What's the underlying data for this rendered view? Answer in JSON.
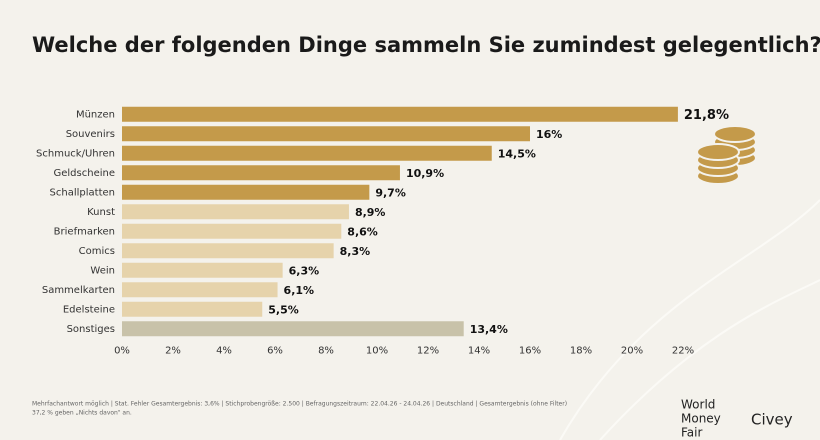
{
  "chart_data": {
    "type": "hbar",
    "title": "Welche der folgenden Dinge sammeln Sie zumindest gelegentlich?",
    "categories": [
      "Münzen",
      "Souvenirs",
      "Schmuck/Uhren",
      "Geldscheine",
      "Schallplatten",
      "Kunst",
      "Briefmarken",
      "Comics",
      "Wein",
      "Sammelkarten",
      "Edelsteine",
      "Sonstiges"
    ],
    "values": [
      21.8,
      16,
      14.5,
      10.9,
      9.7,
      8.9,
      8.6,
      8.3,
      6.3,
      6.1,
      5.5,
      13.4
    ],
    "value_labels": [
      "21,8%",
      "16%",
      "14,5%",
      "10,9%",
      "9,7%",
      "8,9%",
      "8,6%",
      "8,3%",
      "6,3%",
      "6,1%",
      "5,5%",
      "13,4%"
    ],
    "colors": [
      "#c49a4a",
      "#c49a4a",
      "#c49a4a",
      "#c49a4a",
      "#c49a4a",
      "#e6d3ab",
      "#e6d3ab",
      "#e6d3ab",
      "#e6d3ab",
      "#e6d3ab",
      "#e6d3ab",
      "#c8c2a9"
    ],
    "xlim": [
      0,
      22
    ],
    "xticks": [
      {
        "value": 0,
        "label": "0%"
      },
      {
        "value": 2,
        "label": "2%"
      },
      {
        "value": 4,
        "label": "4%"
      },
      {
        "value": 6,
        "label": "6%"
      },
      {
        "value": 8,
        "label": "8%"
      },
      {
        "value": 10,
        "label": "10%"
      },
      {
        "value": 12,
        "label": "12%"
      },
      {
        "value": 14,
        "label": "14%"
      },
      {
        "value": 16,
        "label": "16%"
      },
      {
        "value": 18,
        "label": "18%"
      },
      {
        "value": 20,
        "label": "20%"
      },
      {
        "value": 22,
        "label": "22%"
      }
    ],
    "grid": false,
    "notes": [
      "Mehrfachantwort möglich | Stat. Fehler Gesamtergebnis: 3,6% | Stichprobengröße: 2.500 | Befragungszeitraum: 22.04.26 - 24.04.26 | Deutschland | Gesamtergebnis (ohne Filter)",
      "37,2 % geben „Nichts davon“ an."
    ],
    "logos": [
      "World",
      "Money",
      "Fair",
      "Civey"
    ]
  }
}
